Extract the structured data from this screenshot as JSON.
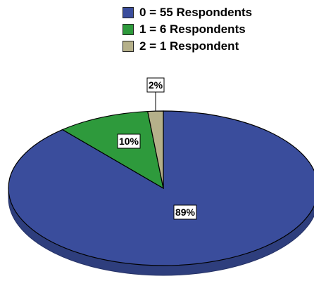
{
  "chart_data": {
    "type": "pie",
    "categories": [
      "0 = 55 Respondents",
      "1 = 6 Respondents",
      "2 = 1 Respondent"
    ],
    "values": [
      55,
      6,
      1
    ],
    "percent_labels": [
      "89%",
      "10%",
      "2%"
    ],
    "colors": [
      "#3a4d9c",
      "#2e9a3c",
      "#b5b08a"
    ],
    "legend_position": "top-right",
    "style": "3d",
    "title": ""
  }
}
